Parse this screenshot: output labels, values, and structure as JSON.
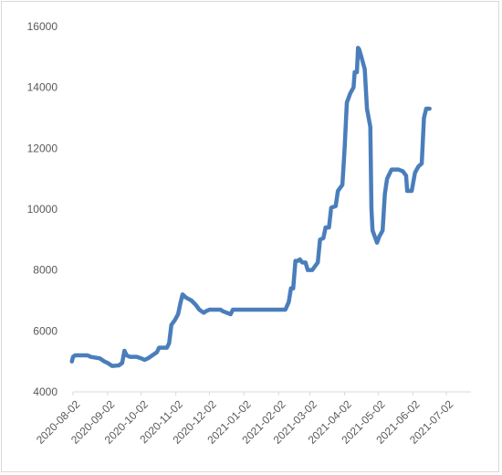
{
  "chart_data": {
    "type": "line",
    "title": "",
    "xlabel": "",
    "ylabel": "",
    "ylim": [
      4000,
      16000
    ],
    "y_ticks": [
      4000,
      6000,
      8000,
      10000,
      12000,
      14000,
      16000
    ],
    "x_tick_labels": [
      "2020-08-02",
      "2020-09-02",
      "2020-10-02",
      "2020-11-02",
      "2020-12-02",
      "2021-01-02",
      "2021-02-02",
      "2021-03-02",
      "2021-04-02",
      "2021-05-02",
      "2021-06-02",
      "2021-07-02"
    ],
    "grid": false,
    "legend": "none",
    "colors": {
      "line": "#4a7ebb",
      "axis": "#d9d9d9",
      "text": "#595959"
    },
    "series": [
      {
        "points": [
          [
            "2020-08-01",
            5000
          ],
          [
            "2020-08-02",
            5150
          ],
          [
            "2020-08-04",
            5200
          ],
          [
            "2020-08-15",
            5200
          ],
          [
            "2020-08-18",
            5150
          ],
          [
            "2020-08-26",
            5100
          ],
          [
            "2020-08-30",
            5000
          ],
          [
            "2020-09-02",
            4950
          ],
          [
            "2020-09-06",
            4850
          ],
          [
            "2020-09-12",
            4870
          ],
          [
            "2020-09-15",
            4950
          ],
          [
            "2020-09-17",
            5350
          ],
          [
            "2020-09-19",
            5200
          ],
          [
            "2020-09-22",
            5150
          ],
          [
            "2020-09-28",
            5150
          ],
          [
            "2020-10-02",
            5100
          ],
          [
            "2020-10-05",
            5050
          ],
          [
            "2020-10-08",
            5100
          ],
          [
            "2020-10-12",
            5200
          ],
          [
            "2020-10-16",
            5300
          ],
          [
            "2020-10-18",
            5450
          ],
          [
            "2020-10-22",
            5450
          ],
          [
            "2020-10-25",
            5450
          ],
          [
            "2020-10-27",
            5600
          ],
          [
            "2020-10-29",
            6200
          ],
          [
            "2020-11-01",
            6350
          ],
          [
            "2020-11-04",
            6550
          ],
          [
            "2020-11-06",
            6900
          ],
          [
            "2020-11-08",
            7200
          ],
          [
            "2020-11-11",
            7100
          ],
          [
            "2020-11-16",
            7000
          ],
          [
            "2020-11-20",
            6850
          ],
          [
            "2020-11-23",
            6700
          ],
          [
            "2020-11-27",
            6600
          ],
          [
            "2020-11-29",
            6650
          ],
          [
            "2020-12-02",
            6700
          ],
          [
            "2020-12-12",
            6700
          ],
          [
            "2020-12-14",
            6650
          ],
          [
            "2020-12-21",
            6550
          ],
          [
            "2020-12-23",
            6700
          ],
          [
            "2020-12-30",
            6700
          ],
          [
            "2021-02-08",
            6700
          ],
          [
            "2021-02-11",
            6950
          ],
          [
            "2021-02-13",
            7400
          ],
          [
            "2021-02-15",
            7400
          ],
          [
            "2021-02-17",
            8300
          ],
          [
            "2021-02-19",
            8300
          ],
          [
            "2021-02-21",
            8350
          ],
          [
            "2021-02-23",
            8250
          ],
          [
            "2021-02-26",
            8250
          ],
          [
            "2021-02-28",
            8000
          ],
          [
            "2021-03-04",
            8000
          ],
          [
            "2021-03-06",
            8100
          ],
          [
            "2021-03-09",
            8250
          ],
          [
            "2021-03-11",
            9000
          ],
          [
            "2021-03-14",
            9050
          ],
          [
            "2021-03-16",
            9400
          ],
          [
            "2021-03-19",
            9400
          ],
          [
            "2021-03-21",
            10050
          ],
          [
            "2021-03-25",
            10100
          ],
          [
            "2021-03-27",
            10600
          ],
          [
            "2021-03-31",
            10800
          ],
          [
            "2021-04-02",
            12000
          ],
          [
            "2021-04-04",
            13500
          ],
          [
            "2021-04-07",
            13800
          ],
          [
            "2021-04-10",
            14000
          ],
          [
            "2021-04-11",
            14500
          ],
          [
            "2021-04-13",
            14500
          ],
          [
            "2021-04-14",
            15300
          ],
          [
            "2021-04-15",
            15250
          ],
          [
            "2021-04-17",
            15000
          ],
          [
            "2021-04-20",
            14600
          ],
          [
            "2021-04-22",
            13300
          ],
          [
            "2021-04-25",
            12700
          ],
          [
            "2021-04-26",
            10000
          ],
          [
            "2021-04-27",
            9300
          ],
          [
            "2021-04-29",
            9100
          ],
          [
            "2021-05-01",
            8900
          ],
          [
            "2021-05-03",
            9100
          ],
          [
            "2021-05-06",
            9300
          ],
          [
            "2021-05-08",
            10500
          ],
          [
            "2021-05-10",
            11000
          ],
          [
            "2021-05-14",
            11300
          ],
          [
            "2021-05-20",
            11300
          ],
          [
            "2021-05-24",
            11250
          ],
          [
            "2021-05-27",
            11100
          ],
          [
            "2021-05-28",
            10600
          ],
          [
            "2021-06-01",
            10600
          ],
          [
            "2021-06-04",
            11200
          ],
          [
            "2021-06-07",
            11400
          ],
          [
            "2021-06-10",
            11500
          ],
          [
            "2021-06-12",
            13000
          ],
          [
            "2021-06-14",
            13300
          ],
          [
            "2021-06-17",
            13300
          ]
        ]
      }
    ]
  }
}
